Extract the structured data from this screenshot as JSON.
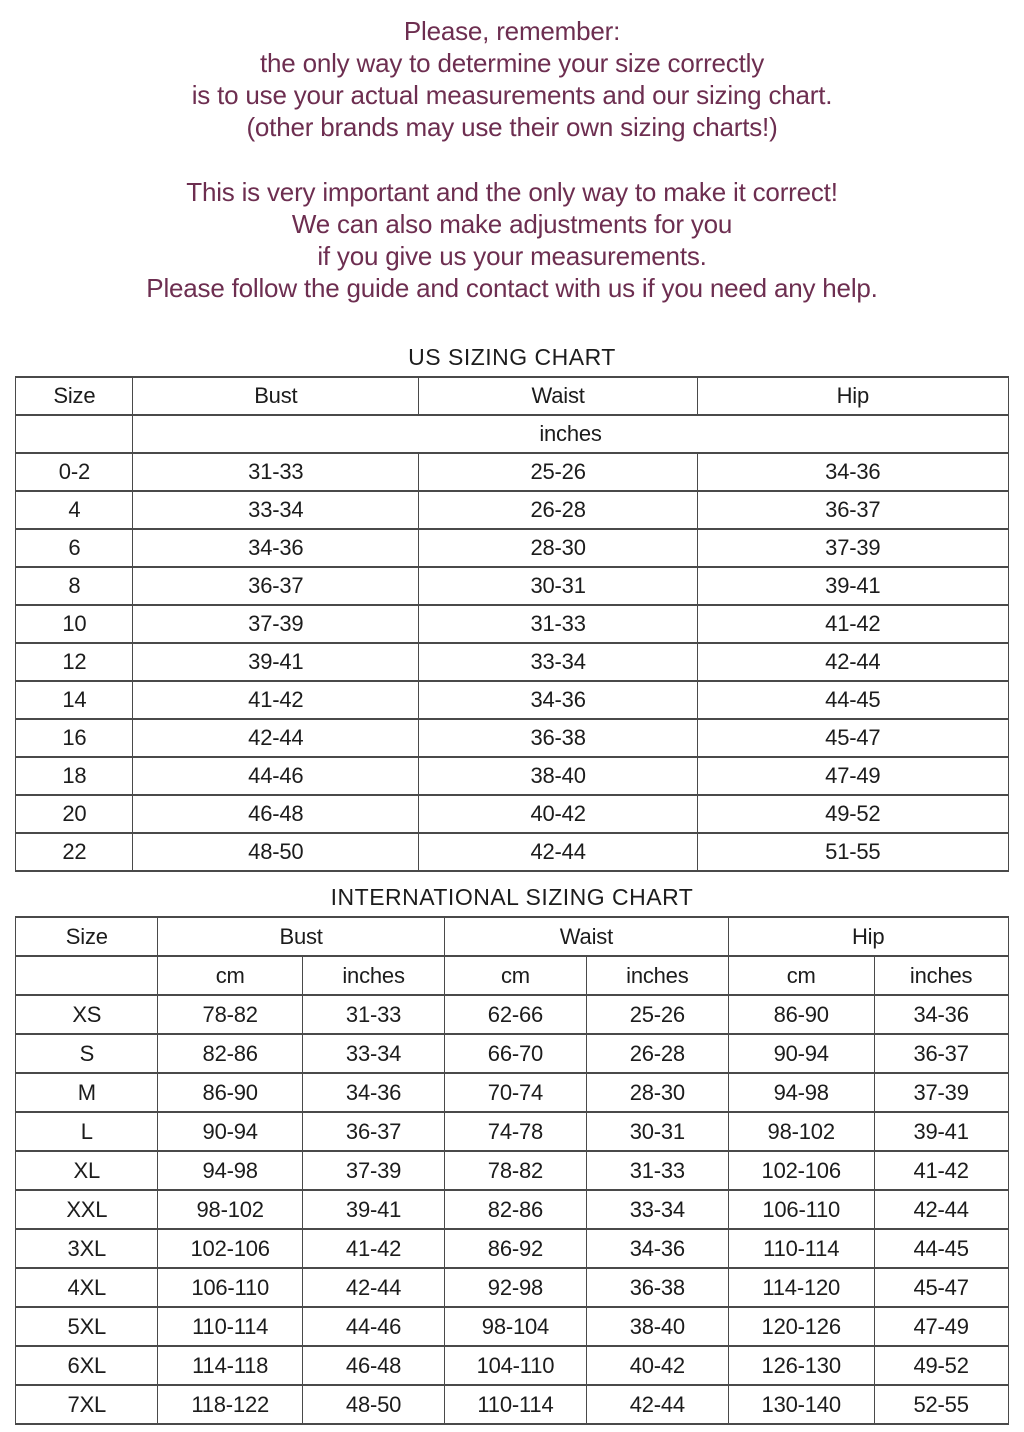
{
  "colors": {
    "intro_text": "#6d2e50",
    "table_text": "#1c1c1c",
    "table_border": "#4a4a4a",
    "background": "#ffffff"
  },
  "intro": {
    "block1": [
      "Please, remember:",
      "the only way to determine your size correctly",
      "is to use your actual measurements and our sizing chart.",
      "(other brands may use their own sizing charts!)"
    ],
    "block2": [
      "This is very important and the only way to make it correct!",
      "We can also make adjustments for you",
      "if you give us your measurements.",
      "Please follow the guide and contact with us if you need any help."
    ]
  },
  "us_chart": {
    "title": "US SIZING CHART",
    "columns": [
      "Size",
      "Bust",
      "Waist",
      "Hip"
    ],
    "unit": "inches",
    "rows": [
      [
        "0-2",
        "31-33",
        "25-26",
        "34-36"
      ],
      [
        "4",
        "33-34",
        "26-28",
        "36-37"
      ],
      [
        "6",
        "34-36",
        "28-30",
        "37-39"
      ],
      [
        "8",
        "36-37",
        "30-31",
        "39-41"
      ],
      [
        "10",
        "37-39",
        "31-33",
        "41-42"
      ],
      [
        "12",
        "39-41",
        "33-34",
        "42-44"
      ],
      [
        "14",
        "41-42",
        "34-36",
        "44-45"
      ],
      [
        "16",
        "42-44",
        "36-38",
        "45-47"
      ],
      [
        "18",
        "44-46",
        "38-40",
        "47-49"
      ],
      [
        "20",
        "46-48",
        "40-42",
        "49-52"
      ],
      [
        "22",
        "48-50",
        "42-44",
        "51-55"
      ]
    ]
  },
  "intl_chart": {
    "title": "INTERNATIONAL SIZING CHART",
    "columns": [
      "Size",
      "Bust",
      "Waist",
      "Hip"
    ],
    "units": [
      "cm",
      "inches",
      "cm",
      "inches",
      "cm",
      "inches"
    ],
    "rows": [
      [
        "XS",
        "78-82",
        "31-33",
        "62-66",
        "25-26",
        "86-90",
        "34-36"
      ],
      [
        "S",
        "82-86",
        "33-34",
        "66-70",
        "26-28",
        "90-94",
        "36-37"
      ],
      [
        "M",
        "86-90",
        "34-36",
        "70-74",
        "28-30",
        "94-98",
        "37-39"
      ],
      [
        "L",
        "90-94",
        "36-37",
        "74-78",
        "30-31",
        "98-102",
        "39-41"
      ],
      [
        "XL",
        "94-98",
        "37-39",
        "78-82",
        "31-33",
        "102-106",
        "41-42"
      ],
      [
        "XXL",
        "98-102",
        "39-41",
        "82-86",
        "33-34",
        "106-110",
        "42-44"
      ],
      [
        "3XL",
        "102-106",
        "41-42",
        "86-92",
        "34-36",
        "110-114",
        "44-45"
      ],
      [
        "4XL",
        "106-110",
        "42-44",
        "92-98",
        "36-38",
        "114-120",
        "45-47"
      ],
      [
        "5XL",
        "110-114",
        "44-46",
        "98-104",
        "38-40",
        "120-126",
        "47-49"
      ],
      [
        "6XL",
        "114-118",
        "46-48",
        "104-110",
        "40-42",
        "126-130",
        "49-52"
      ],
      [
        "7XL",
        "118-122",
        "48-50",
        "110-114",
        "42-44",
        "130-140",
        "52-55"
      ]
    ]
  }
}
